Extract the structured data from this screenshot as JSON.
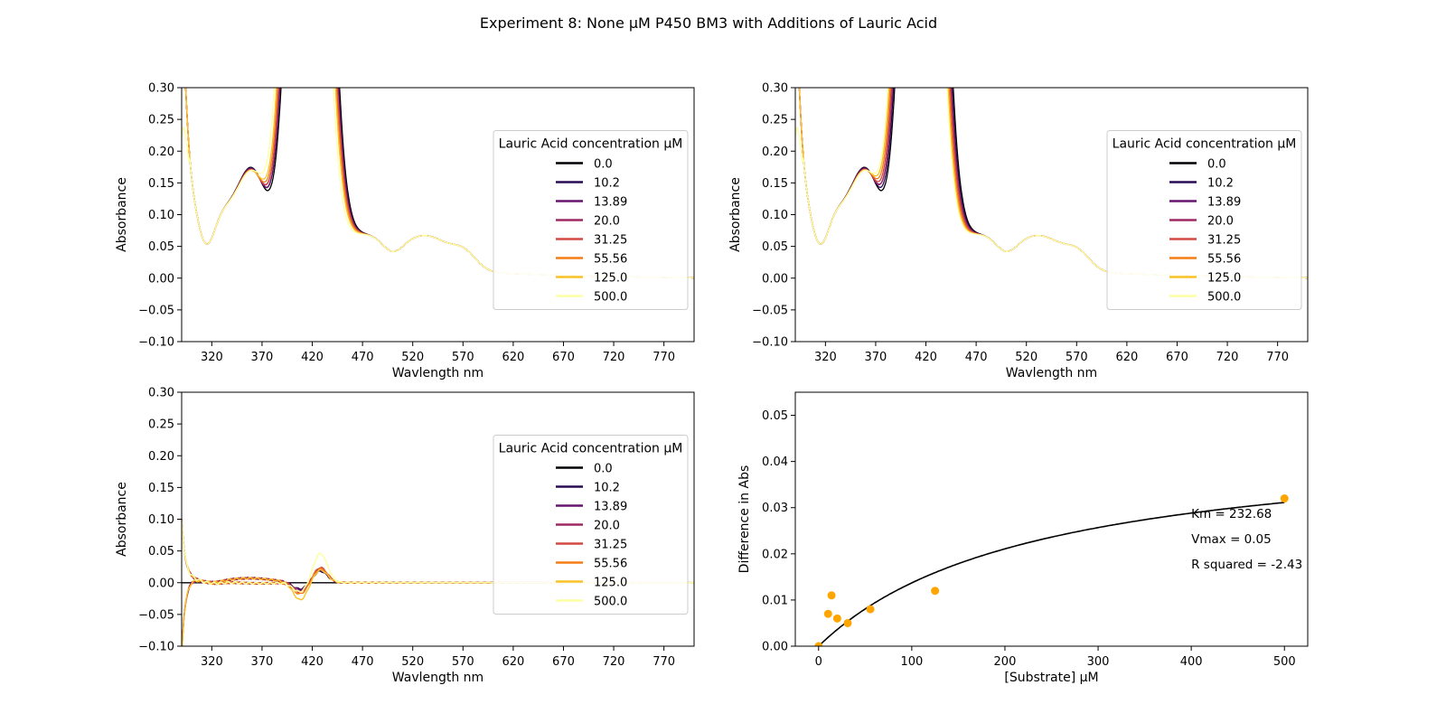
{
  "title": "Experiment 8: None μM P450 BM3 with Additions of Lauric Acid",
  "chart_data": [
    {
      "type": "line",
      "panel": "top-left",
      "xlabel": "Wavlength nm",
      "ylabel": "Absorbance",
      "xlim": [
        290,
        800
      ],
      "ylim": [
        -0.1,
        0.3
      ],
      "xticks": [
        320,
        370,
        420,
        470,
        520,
        570,
        620,
        670,
        720,
        770
      ],
      "yticks": [
        -0.1,
        -0.05,
        0.0,
        0.05,
        0.1,
        0.15,
        0.2,
        0.25,
        0.3
      ],
      "legend_title": "Lauric Acid concentration μM",
      "legend_placement": "center-right",
      "grid": false,
      "series": [
        {
          "name": "0.0",
          "color": "#000004",
          "peak_scale": 1.0,
          "soret_shift": 0
        },
        {
          "name": "10.2",
          "color": "#280b54",
          "peak_scale": 0.99,
          "soret_shift": -1
        },
        {
          "name": "13.89",
          "color": "#65156e",
          "peak_scale": 0.98,
          "soret_shift": -1
        },
        {
          "name": "20.0",
          "color": "#9f2a63",
          "peak_scale": 0.97,
          "soret_shift": -2
        },
        {
          "name": "31.25",
          "color": "#d44842",
          "peak_scale": 0.96,
          "soret_shift": -2
        },
        {
          "name": "55.56",
          "color": "#f57d15",
          "peak_scale": 0.95,
          "soret_shift": -3
        },
        {
          "name": "125.0",
          "color": "#fac228",
          "peak_scale": 0.94,
          "soret_shift": -4
        },
        {
          "name": "500.0",
          "color": "#fcffa4",
          "peak_scale": 0.93,
          "soret_shift": -6
        }
      ]
    },
    {
      "type": "line",
      "panel": "top-right",
      "xlabel": "Wavlength nm",
      "ylabel": "Absorbance",
      "xlim": [
        290,
        800
      ],
      "ylim": [
        -0.1,
        0.3
      ],
      "xticks": [
        320,
        370,
        420,
        470,
        520,
        570,
        620,
        670,
        720,
        770
      ],
      "yticks": [
        -0.1,
        -0.05,
        0.0,
        0.05,
        0.1,
        0.15,
        0.2,
        0.25,
        0.3
      ],
      "legend_title": "Lauric Acid concentration μM",
      "legend_placement": "center-right",
      "grid": false,
      "series": [
        {
          "name": "0.0",
          "color": "#000004",
          "peak_scale": 1.0,
          "soret_shift": 0
        },
        {
          "name": "10.2",
          "color": "#280b54",
          "peak_scale": 0.99,
          "soret_shift": -1
        },
        {
          "name": "13.89",
          "color": "#65156e",
          "peak_scale": 0.98,
          "soret_shift": -2
        },
        {
          "name": "20.0",
          "color": "#9f2a63",
          "peak_scale": 0.97,
          "soret_shift": -2
        },
        {
          "name": "31.25",
          "color": "#d44842",
          "peak_scale": 0.96,
          "soret_shift": -3
        },
        {
          "name": "55.56",
          "color": "#f57d15",
          "peak_scale": 0.95,
          "soret_shift": -4
        },
        {
          "name": "125.0",
          "color": "#fac228",
          "peak_scale": 0.94,
          "soret_shift": -5
        },
        {
          "name": "500.0",
          "color": "#fcffa4",
          "peak_scale": 0.93,
          "soret_shift": -6
        }
      ]
    },
    {
      "type": "line",
      "panel": "bottom-left",
      "xlabel": "Wavlength nm",
      "ylabel": "Absorbance",
      "xlim": [
        290,
        800
      ],
      "ylim": [
        -0.1,
        0.3
      ],
      "xticks": [
        320,
        370,
        420,
        470,
        520,
        570,
        620,
        670,
        720,
        770
      ],
      "yticks": [
        -0.1,
        -0.05,
        0.0,
        0.05,
        0.1,
        0.15,
        0.2,
        0.25,
        0.3
      ],
      "legend_title": "Lauric Acid concentration μM",
      "legend_placement": "center-right",
      "grid": false,
      "series": [
        {
          "name": "0.0",
          "color": "#000004",
          "peak": 0.0,
          "trough": 0.0
        },
        {
          "name": "10.2",
          "color": "#280b54",
          "peak": 0.018,
          "trough": -0.01
        },
        {
          "name": "13.89",
          "color": "#65156e",
          "peak": 0.02,
          "trough": -0.012
        },
        {
          "name": "20.0",
          "color": "#9f2a63",
          "peak": 0.022,
          "trough": -0.014
        },
        {
          "name": "31.25",
          "color": "#d44842",
          "peak": 0.024,
          "trough": -0.016
        },
        {
          "name": "55.56",
          "color": "#f57d15",
          "peak": 0.022,
          "trough": -0.018
        },
        {
          "name": "125.0",
          "color": "#fac228",
          "peak": 0.02,
          "trough": -0.028
        },
        {
          "name": "500.0",
          "color": "#fcffa4",
          "peak": 0.046,
          "trough": -0.015
        }
      ]
    },
    {
      "type": "scatter",
      "panel": "bottom-right",
      "xlabel": "[Substrate] μM",
      "ylabel": "Difference in Abs",
      "xlim": [
        -25,
        525
      ],
      "ylim": [
        0.0,
        0.055
      ],
      "xticks": [
        0,
        100,
        200,
        300,
        400,
        500
      ],
      "yticks": [
        0.0,
        0.01,
        0.02,
        0.03,
        0.04,
        0.05
      ],
      "point_color": "#ffa500",
      "fit_color": "#000000",
      "points": [
        {
          "x": 0.0,
          "y": 0.0
        },
        {
          "x": 10.2,
          "y": 0.007
        },
        {
          "x": 13.89,
          "y": 0.011
        },
        {
          "x": 20.0,
          "y": 0.006
        },
        {
          "x": 31.25,
          "y": 0.005
        },
        {
          "x": 55.56,
          "y": 0.008
        },
        {
          "x": 125.0,
          "y": 0.012
        },
        {
          "x": 500.0,
          "y": 0.032
        }
      ],
      "fit": {
        "model": "michaelis-menten",
        "Km": 232.68,
        "Vmax": 0.0456,
        "x_range": [
          0,
          500
        ]
      },
      "annotations": [
        "Km = 232.68",
        "Vmax = 0.05",
        "R squared = -2.43"
      ]
    }
  ]
}
